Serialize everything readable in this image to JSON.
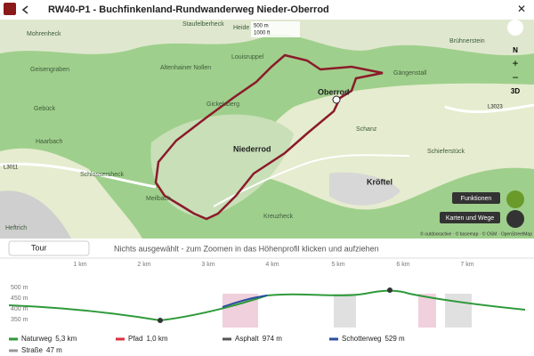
{
  "header": {
    "title": "RW40-P1 - Buchfinkenland-Rundwanderweg Nieder-Oberrod"
  },
  "map": {
    "labels": [
      "Mohrenheck",
      "Geisengraben",
      "Gebück",
      "Haarbach",
      "Schlossersheck",
      "Staufelberheck",
      "Altenhainer Nollen",
      "Louisruppel",
      "Gickelsberg",
      "Niederrod",
      "Oberrod",
      "Schanz",
      "Kröftel",
      "Kreuzheck",
      "Meilbach",
      "Heide",
      "Brühnerstein",
      "Gängenstall",
      "Schieferstück",
      "Heftrich"
    ],
    "roads": [
      "L3023",
      "L3011"
    ],
    "scale": [
      "500 m",
      "1000 ft"
    ],
    "controls": {
      "north": "N",
      "zoom_in": "+",
      "zoom_out": "−",
      "three_d": "3D"
    },
    "buttons": [
      "Funktionen",
      "Karten und Wege"
    ],
    "attribution": "© outdooractive · © basemap · © OSM · OpenStreetMap"
  },
  "toolbar": {
    "tour": "Tour",
    "message": "Nichts ausgewählt - zum Zoomen in das Höhenprofil klicken und aufziehen"
  },
  "profile": {
    "x_labels": [
      "1 km",
      "2 km",
      "3 km",
      "4 km",
      "5 km",
      "6 km",
      "7 km"
    ],
    "y_labels": [
      "500 m",
      "450 m",
      "400 m",
      "350 m"
    ]
  },
  "legend": [
    {
      "name": "Naturweg",
      "amount": "5,3 km",
      "color": "#2e9a3a"
    },
    {
      "name": "Pfad",
      "amount": "1,0 km",
      "color": "#d8323c"
    },
    {
      "name": "Asphalt",
      "amount": "974 m",
      "color": "#555555"
    },
    {
      "name": "Schotterweg",
      "amount": "529 m",
      "color": "#2a4fa0"
    },
    {
      "name": "Straße",
      "amount": "47 m",
      "color": "#999999"
    }
  ]
}
